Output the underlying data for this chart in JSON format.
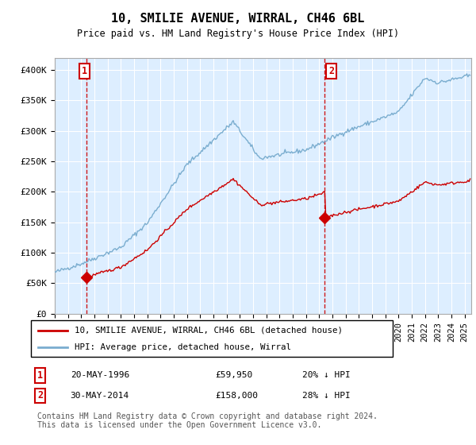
{
  "title": "10, SMILIE AVENUE, WIRRAL, CH46 6BL",
  "subtitle": "Price paid vs. HM Land Registry's House Price Index (HPI)",
  "ylim": [
    0,
    420000
  ],
  "yticks": [
    0,
    50000,
    100000,
    150000,
    200000,
    250000,
    300000,
    350000,
    400000
  ],
  "xlim_start": 1994.0,
  "xlim_end": 2025.5,
  "sale1_date": 1996.38,
  "sale1_price": 59950,
  "sale2_date": 2014.42,
  "sale2_price": 158000,
  "legend_line1": "10, SMILIE AVENUE, WIRRAL, CH46 6BL (detached house)",
  "legend_line2": "HPI: Average price, detached house, Wirral",
  "footer": "Contains HM Land Registry data © Crown copyright and database right 2024.\nThis data is licensed under the Open Government Licence v3.0.",
  "hpi_color": "#7aadcf",
  "sale_color": "#cc0000",
  "bg_color": "#ddeeff",
  "dashed_color": "#cc0000"
}
